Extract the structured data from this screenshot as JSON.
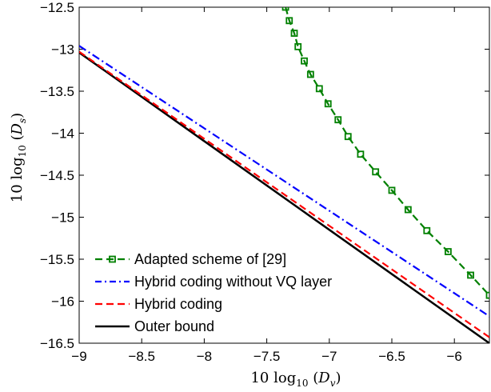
{
  "chart_data": {
    "type": "line",
    "xlabel": "10 log₁₀ (D_v)",
    "ylabel": "10 log₁₀ (D_s)",
    "xlim": [
      -9,
      -5.72
    ],
    "ylim": [
      -16.5,
      -12.5
    ],
    "xticks": [
      {
        "value": -9,
        "label": "−9"
      },
      {
        "value": -8.5,
        "label": "−8.5"
      },
      {
        "value": -8,
        "label": "−8"
      },
      {
        "value": -7.5,
        "label": "−7.5"
      },
      {
        "value": -7,
        "label": "−7"
      },
      {
        "value": -6.5,
        "label": "−6.5"
      },
      {
        "value": -6,
        "label": "−6"
      }
    ],
    "yticks": [
      {
        "value": -12.5,
        "label": "−12.5"
      },
      {
        "value": -13,
        "label": "−13"
      },
      {
        "value": -13.5,
        "label": "−13.5"
      },
      {
        "value": -14,
        "label": "−14"
      },
      {
        "value": -14.5,
        "label": "−14.5"
      },
      {
        "value": -15,
        "label": "−15"
      },
      {
        "value": -15.5,
        "label": "−15.5"
      },
      {
        "value": -16,
        "label": "−16"
      },
      {
        "value": -16.5,
        "label": "−16.5"
      }
    ],
    "legend_position": "bottom-left",
    "series": [
      {
        "name": "Adapted scheme of [29]",
        "color": "#008000",
        "style": "dashed-square-markers",
        "x": [
          -7.35,
          -7.32,
          -7.28,
          -7.25,
          -7.2,
          -7.15,
          -7.08,
          -7.01,
          -6.93,
          -6.85,
          -6.75,
          -6.63,
          -6.5,
          -6.37,
          -6.22,
          -6.05,
          -5.87,
          -5.72
        ],
        "y": [
          -12.5,
          -12.66,
          -12.81,
          -12.97,
          -13.14,
          -13.3,
          -13.47,
          -13.65,
          -13.84,
          -14.04,
          -14.25,
          -14.46,
          -14.68,
          -14.91,
          -15.16,
          -15.41,
          -15.69,
          -15.93
        ]
      },
      {
        "name": "Hybrid coding without VQ layer",
        "color": "#0000ff",
        "style": "dashdot",
        "x": [
          -9,
          -5.72
        ],
        "y": [
          -12.96,
          -16.18
        ]
      },
      {
        "name": "Hybrid coding",
        "color": "#ff0000",
        "style": "dashed",
        "x": [
          -9,
          -5.72
        ],
        "y": [
          -13.03,
          -16.43
        ]
      },
      {
        "name": "Outer bound",
        "color": "#000000",
        "style": "solid",
        "x": [
          -9,
          -5.72
        ],
        "y": [
          -13.04,
          -16.5
        ]
      }
    ]
  }
}
